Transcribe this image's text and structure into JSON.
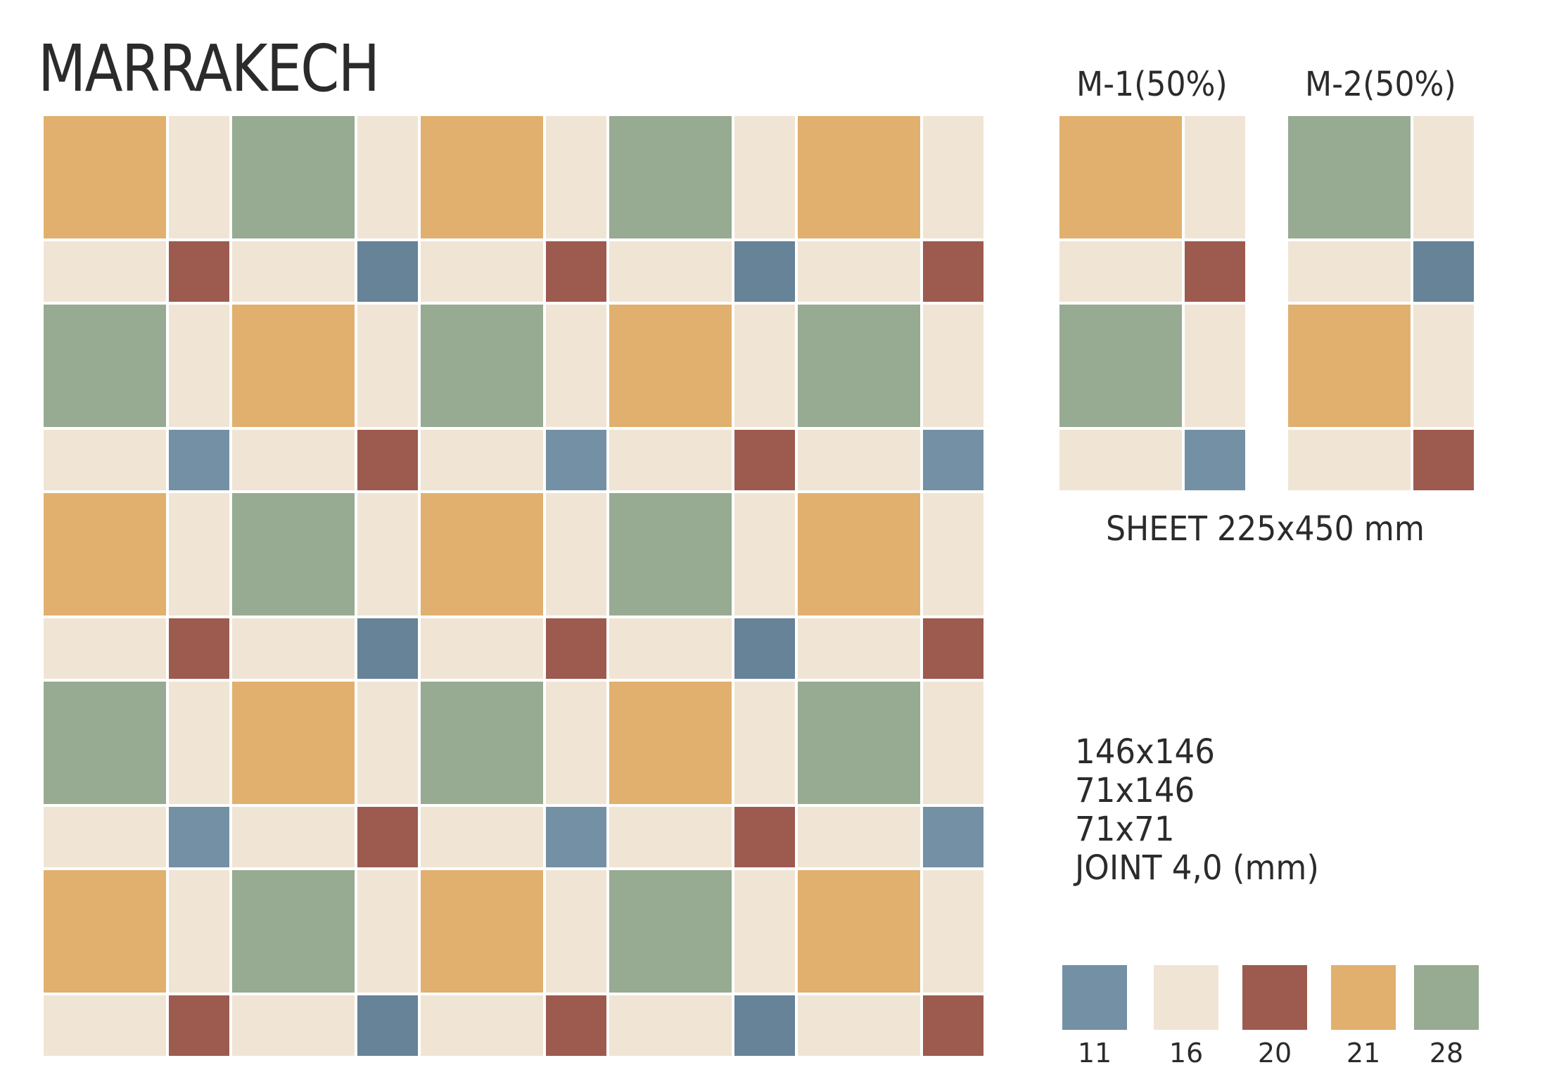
{
  "title": "MARRAKECH",
  "colors": {
    "11": "#7390a5",
    "16": "#f0e5d5",
    "20": "#9c5b4e",
    "21": "#e1b06e",
    "28": "#97aa92",
    "11b": "#668397"
  },
  "main_pattern": {
    "tile_rows": [
      [
        "21",
        "16",
        "28",
        "16",
        "21",
        "16",
        "28",
        "16",
        "21",
        "16"
      ],
      [
        "16",
        "20",
        "16",
        "11b",
        "16",
        "20",
        "16",
        "11b",
        "16",
        "20"
      ],
      [
        "28",
        "16",
        "21",
        "16",
        "28",
        "16",
        "21",
        "16",
        "28",
        "16"
      ],
      [
        "16",
        "11",
        "16",
        "20",
        "16",
        "11",
        "16",
        "20",
        "16",
        "11"
      ],
      [
        "21",
        "16",
        "28",
        "16",
        "21",
        "16",
        "28",
        "16",
        "21",
        "16"
      ],
      [
        "16",
        "20",
        "16",
        "11b",
        "16",
        "20",
        "16",
        "11b",
        "16",
        "20"
      ],
      [
        "28",
        "16",
        "21",
        "16",
        "28",
        "16",
        "21",
        "16",
        "28",
        "16"
      ],
      [
        "16",
        "11",
        "16",
        "20",
        "16",
        "11",
        "16",
        "20",
        "16",
        "11"
      ],
      [
        "21",
        "16",
        "28",
        "16",
        "21",
        "16",
        "28",
        "16",
        "21",
        "16"
      ],
      [
        "16",
        "20",
        "16",
        "11b",
        "16",
        "20",
        "16",
        "11b",
        "16",
        "20"
      ]
    ]
  },
  "modules": [
    {
      "label": "M-1(50%)",
      "tile_rows": [
        [
          "21",
          "16"
        ],
        [
          "16",
          "20"
        ],
        [
          "28",
          "16"
        ],
        [
          "16",
          "11"
        ]
      ]
    },
    {
      "label": "M-2(50%)",
      "tile_rows": [
        [
          "28",
          "16"
        ],
        [
          "16",
          "11b"
        ],
        [
          "21",
          "16"
        ],
        [
          "16",
          "20"
        ]
      ]
    }
  ],
  "sheet_size": "SHEET 225x450 mm",
  "tile_sizes": [
    "146x146",
    "71x146",
    "71x71",
    "JOINT 4,0 (mm)"
  ],
  "palette": [
    {
      "code": "11",
      "color": "#7390a5"
    },
    {
      "code": "16",
      "color": "#f0e5d5"
    },
    {
      "code": "20",
      "color": "#9c5b4e"
    },
    {
      "code": "21",
      "color": "#e1b06e"
    },
    {
      "code": "28",
      "color": "#97aa92"
    }
  ]
}
